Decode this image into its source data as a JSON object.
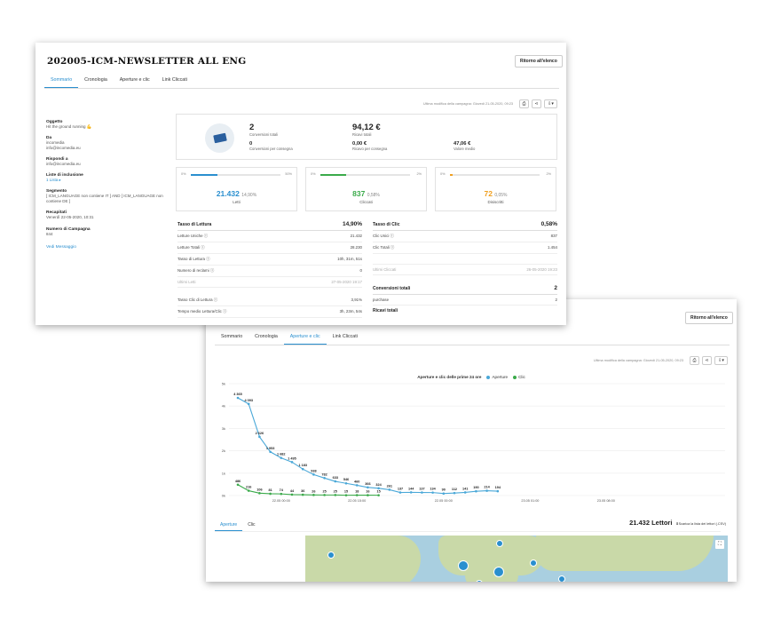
{
  "card1": {
    "title": "202005-ICM-NEWSLETTER ALL ENG",
    "back_label": "Ritorno all'elenco",
    "tabs": [
      "Sommario",
      "Cronologia",
      "Aperture e clic",
      "Link Cliccati"
    ],
    "toolbar_modified": "Ultima modifica della campagna: Giovedì 21-05-2020, 09:23",
    "info": [
      {
        "label": "Oggetto",
        "lines": [
          "Hit the ground running 💪"
        ]
      },
      {
        "label": "Da",
        "lines": [
          "incomedia",
          "info@incomedia.eu"
        ]
      },
      {
        "label": "Rispondi a",
        "lines": [
          "info@incomedia.eu"
        ]
      },
      {
        "label": "Liste di inclusione",
        "lines": [
          "1 Lista ▸"
        ]
      },
      {
        "label": "Segmento",
        "lines": [
          "[ ICM_LANGUAGE non contiene IT ] AND [ ICM_LANGUAGE non",
          "contiene DE ]"
        ]
      },
      {
        "label": "Recapitati",
        "lines": [
          "Venerdì 22-05-2020, 10:31"
        ]
      },
      {
        "label": "Numero di Campagna",
        "lines": [
          "844"
        ]
      }
    ],
    "view_message": "Vedi Messaggio",
    "conversions": {
      "total_value": "2",
      "total_label": "Conversioni totali",
      "revenue_value": "94,12 €",
      "revenue_label": "Ricavi totali",
      "per_delivery_value": "0",
      "per_delivery_label": "Conversioni per consegna",
      "rev_per_delivery_value": "0,00 €",
      "rev_per_delivery_label": "Ricavo per consegna",
      "avg_value": "47,06 €",
      "avg_label": "Valore medio"
    },
    "stats": [
      {
        "min": "0%",
        "max": "50%",
        "value": "21.432",
        "pct": "14,90%",
        "label": "Letti",
        "fill": 0.298,
        "color": "#2a8fcf"
      },
      {
        "min": "0%",
        "max": "2%",
        "value": "837",
        "pct": "0,58%",
        "label": "Cliccati",
        "fill": 0.29,
        "color": "#3aaa4a"
      },
      {
        "min": "0%",
        "max": "2%",
        "value": "72",
        "pct": "0,05%",
        "label": "Disiscritti",
        "fill": 0.025,
        "color": "#f0a020"
      }
    ],
    "table_left": {
      "head_label": "Tasso di Lettura",
      "head_value": "14,90%",
      "rows": [
        {
          "label": "Letture Uniche ⓘ",
          "value": "21.432"
        },
        {
          "label": "Letture Totali ⓘ",
          "value": "28.230"
        },
        {
          "label": "Tasso di Lettura ⓘ",
          "value": "10h, 31m, 51s"
        },
        {
          "label": "Numero di reclami ⓘ",
          "value": "0"
        },
        {
          "label": "Ultimi Letti",
          "value": "27-05-2020 19:17",
          "muted": true
        }
      ],
      "rows2": [
        {
          "label": "Tasso Clic di Lettura ⓘ",
          "value": "3,91%"
        },
        {
          "label": "Tempo medio Lettura/Clic ⓘ",
          "value": "3h, 23m, 54s"
        }
      ]
    },
    "table_right": {
      "head_label": "Tasso di Clic",
      "head_value": "0,58%",
      "rows": [
        {
          "label": "Clic Unici ⓘ",
          "value": "837"
        },
        {
          "label": "Clic Totali ⓘ",
          "value": "1.454"
        },
        {
          "label": "",
          "value": ""
        },
        {
          "label": "Ultimi Cliccati",
          "value": "26-05-2020 19:23",
          "muted": true
        }
      ],
      "conv_label": "Conversioni totali",
      "conv_value": "2",
      "purchase_label": "purchase",
      "purchase_value": "2",
      "rev_label": "Ricavi totali"
    }
  },
  "card2": {
    "back_label": "Ritorno all'elenco",
    "tabs": [
      "Sommario",
      "Cronologia",
      "Aperture e clic",
      "Link Cliccati"
    ],
    "toolbar_modified": "Ultima modifica della campagna: Giovedì 21-05-2020, 09:23",
    "chart_title": "Aperture e clic delle prime 24 ore",
    "bottom_tabs": [
      "Aperture",
      "Clic"
    ],
    "readers_value": "21.432 Lettori",
    "download_label": "⬇Scarica la lista dei lettori (.CSV)"
  },
  "chart_data": {
    "type": "line",
    "title": "Aperture e clic delle prime 24 ore",
    "y_ticks": [
      "0k",
      "1k",
      "2k",
      "3k",
      "4k",
      "5k"
    ],
    "ylim": [
      0,
      5000
    ],
    "x_ticks": [
      {
        "index": 4,
        "label": "22.05 00:00"
      },
      {
        "index": 11,
        "label": "22.05 15:00"
      },
      {
        "index": 19,
        "label": "22.05 00:00"
      },
      {
        "index": 27,
        "label": "23.05 01:00"
      },
      {
        "index": 34,
        "label": "23.05 08:00"
      }
    ],
    "series": [
      {
        "name": "Aperture",
        "color": "#4aa8d8",
        "values": [
          4365,
          4093,
          2626,
          1953,
          1682,
          1495,
          1183,
          938,
          782,
          633,
          546,
          460,
          366,
          324,
          261,
          137,
          144,
          137,
          134,
          90,
          112,
          141,
          190,
          214,
          194
        ],
        "labels": [
          "4 365",
          "4 093",
          "2 626",
          "1 953",
          "1 682",
          "1 495",
          "1 183",
          "938",
          "782",
          "633",
          "546",
          "460",
          "366",
          "324",
          "261",
          "137",
          "144",
          "137",
          "134",
          "90",
          "112",
          "141",
          "190",
          "214",
          "194"
        ]
      },
      {
        "name": "Clic",
        "color": "#3aaa4a",
        "values": [
          486,
          216,
          106,
          81,
          74,
          44,
          36,
          26,
          25,
          25,
          15,
          18,
          16,
          15
        ],
        "labels": [
          "486",
          "216",
          "106",
          "81",
          "74",
          "44",
          "36",
          "26",
          "25",
          "25",
          "15",
          "18",
          "16",
          "15"
        ]
      }
    ]
  }
}
